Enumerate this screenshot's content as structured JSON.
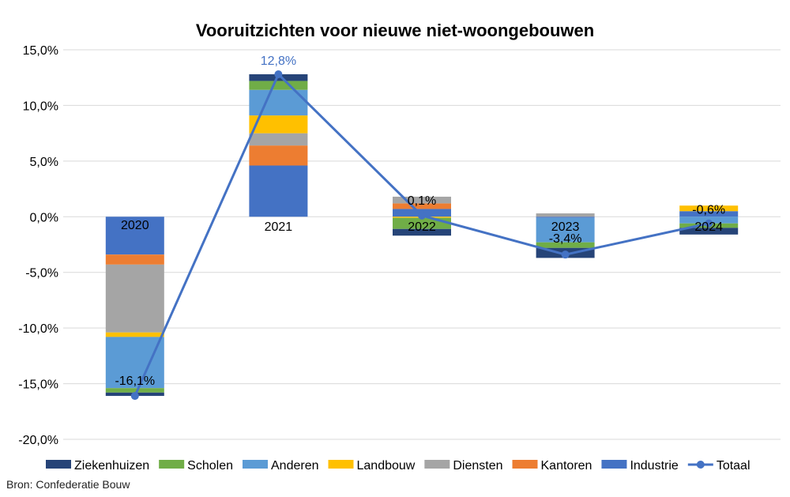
{
  "chart_data": {
    "type": "bar",
    "stacked": true,
    "title": "Vooruitzichten voor nieuwe niet-woongebouwen",
    "categories": [
      "2020",
      "2021",
      "2022",
      "2023",
      "2024"
    ],
    "ylim": [
      -20,
      15
    ],
    "yticks": [
      "-20,0%",
      "-15,0%",
      "-10,0%",
      "-5,0%",
      "0,0%",
      "5,0%",
      "10,0%",
      "15,0%"
    ],
    "grid": true,
    "legend_position": "bottom",
    "series": [
      {
        "name": "Industrie",
        "color": "#4472C4",
        "values": [
          -3.4,
          4.6,
          0.7,
          -0.1,
          0.5
        ]
      },
      {
        "name": "Kantoren",
        "color": "#ED7D31",
        "values": [
          -0.9,
          1.8,
          0.5,
          0,
          0
        ]
      },
      {
        "name": "Diensten",
        "color": "#A5A5A5",
        "values": [
          -6.1,
          1.1,
          0.6,
          0.3,
          0
        ]
      },
      {
        "name": "Landbouw",
        "color": "#FFC000",
        "values": [
          -0.4,
          1.6,
          -0.1,
          0,
          0.5
        ]
      },
      {
        "name": "Anderen",
        "color": "#5B9BD5",
        "values": [
          -4.6,
          2.3,
          0,
          -2.2,
          -0.6
        ]
      },
      {
        "name": "Scholen",
        "color": "#70AD47",
        "values": [
          -0.4,
          0.8,
          -1.0,
          -0.5,
          -0.4
        ]
      },
      {
        "name": "Ziekenhuizen",
        "color": "#264478",
        "values": [
          -0.3,
          0.6,
          -0.6,
          -0.9,
          -0.6
        ]
      }
    ],
    "line": {
      "name": "Totaal",
      "color": "#4472C4",
      "values": [
        -16.1,
        12.8,
        0.1,
        -3.4,
        -0.6
      ],
      "labels": [
        "-16,1%",
        "12,8%",
        "0,1%",
        "-3,4%",
        "-0,6%"
      ]
    },
    "legend_order": [
      "Ziekenhuizen",
      "Scholen",
      "Anderen",
      "Landbouw",
      "Diensten",
      "Kantoren",
      "Industrie",
      "Totaal"
    ]
  },
  "source": "Bron: Confederatie Bouw"
}
